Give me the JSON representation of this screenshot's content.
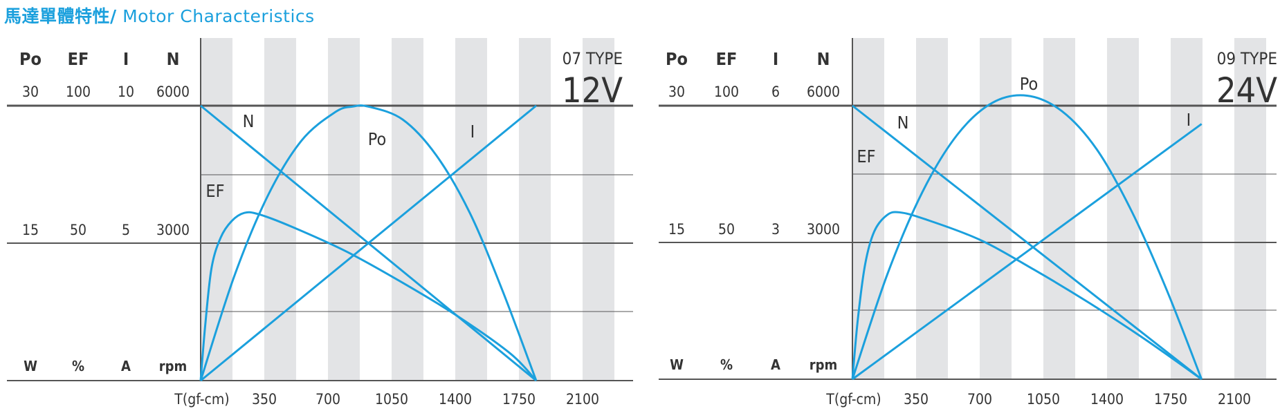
{
  "page": {
    "title_zh": "馬達單體特性/",
    "title_en": " Motor Characteristics"
  },
  "colors": {
    "curve": "#1ba0dd",
    "band": "#e3e4e6",
    "line": "#555555",
    "text": "#333333",
    "title": "#1ba0dd"
  },
  "chart_data": [
    {
      "type": "line",
      "type_label": "07 TYPE",
      "voltage": "12V",
      "column_headers": [
        "Po",
        "EF",
        "I",
        "N"
      ],
      "top_values": [
        "30",
        "100",
        "10",
        "6000"
      ],
      "mid_values": [
        "15",
        "50",
        "5",
        "3000"
      ],
      "units": [
        "W",
        "%",
        "A",
        "rpm"
      ],
      "x_axis_label": "T(gf-cm)",
      "x_ticks": [
        "350",
        "700",
        "1050",
        "1400",
        "1750",
        "2100"
      ],
      "xlim": [
        0,
        2275
      ],
      "curve_labels": [
        "N",
        "Po",
        "I",
        "EF"
      ],
      "series": [
        {
          "name": "N",
          "unit": "rpm",
          "x": [
            0,
            1845
          ],
          "y": [
            6000,
            0
          ]
        },
        {
          "name": "I",
          "unit": "A",
          "x": [
            0,
            1845
          ],
          "y": [
            0,
            10
          ]
        },
        {
          "name": "Po",
          "unit": "W",
          "x": [
            0,
            185,
            370,
            555,
            740,
            835,
            922,
            1110,
            1295,
            1480,
            1660,
            1845
          ],
          "y": [
            0,
            11.4,
            20.2,
            26.2,
            29.3,
            29.9,
            29.9,
            28.5,
            24.6,
            18.3,
            9.8,
            0
          ]
        },
        {
          "name": "EF",
          "unit": "%",
          "x": [
            0,
            25,
            60,
            110,
            170,
            240,
            320,
            500,
            800,
            1100,
            1400,
            1700,
            1845
          ],
          "y": [
            0,
            20,
            41,
            52,
            58,
            61,
            60.5,
            56,
            47,
            36,
            24,
            10,
            0
          ]
        }
      ]
    },
    {
      "type": "line",
      "type_label": "09 TYPE",
      "voltage": "24V",
      "column_headers": [
        "Po",
        "EF",
        "I",
        "N"
      ],
      "top_values": [
        "30",
        "100",
        "6",
        "6000"
      ],
      "mid_values": [
        "15",
        "50",
        "3",
        "3000"
      ],
      "units": [
        "W",
        "%",
        "A",
        "rpm"
      ],
      "x_axis_label": "T(gf-cm)",
      "x_ticks": [
        "350",
        "700",
        "1050",
        "1400",
        "1750",
        "2100"
      ],
      "xlim": [
        0,
        2270
      ],
      "curve_labels": [
        "N",
        "EF",
        "Po",
        "I"
      ],
      "series": [
        {
          "name": "N",
          "unit": "rpm",
          "x": [
            0,
            1920
          ],
          "y": [
            6000,
            0
          ]
        },
        {
          "name": "I",
          "unit": "A",
          "x": [
            0,
            1920
          ],
          "y": [
            0,
            5.6
          ]
        },
        {
          "name": "Po",
          "unit": "W",
          "x": [
            0,
            192,
            384,
            576,
            768,
            960,
            1152,
            1344,
            1536,
            1728,
            1920
          ],
          "y": [
            0,
            11.5,
            20.5,
            26.8,
            30.3,
            31.1,
            29.4,
            25.2,
            18.4,
            9.8,
            0
          ]
        },
        {
          "name": "EF",
          "unit": "%",
          "x": [
            0,
            30,
            70,
            120,
            190,
            260,
            400,
            700,
            1000,
            1300,
            1600,
            1920
          ],
          "y": [
            0,
            22,
            42,
            54,
            60,
            61,
            58.5,
            51,
            40,
            28,
            15,
            0
          ]
        }
      ]
    }
  ]
}
